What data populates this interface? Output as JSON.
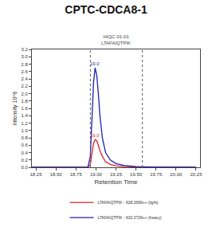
{
  "chart_data": {
    "type": "line",
    "title": "CPTC-CDCA8-1",
    "subtitle": [
      "HIQC-01-01",
      "LTAFAIQTPIK"
    ],
    "x_label": "Retention Time",
    "y_label": "Intensity 10^6",
    "x": [
      18.2,
      18.5,
      18.8,
      18.9,
      18.93,
      18.95,
      18.97,
      18.99,
      19.01,
      19.03,
      19.05,
      19.08,
      19.12,
      19.18,
      19.25,
      19.35,
      19.5,
      19.7,
      20.0,
      20.25
    ],
    "series": [
      {
        "name": "LTAFAIQTPIK - 628.3658++ (light)",
        "color": "#d62728",
        "values": [
          0,
          0,
          0,
          0,
          0.08,
          0.35,
          0.65,
          0.75,
          0.72,
          0.6,
          0.45,
          0.3,
          0.15,
          0.08,
          0.04,
          0.02,
          0.01,
          0,
          0,
          0
        ]
      },
      {
        "name": "LTAFAIQTPIK - 632.3729++ (heavy)",
        "color": "#1f1fb4",
        "values": [
          0,
          0,
          0,
          0.01,
          0.3,
          1.3,
          2.3,
          2.7,
          2.5,
          2.0,
          1.4,
          0.8,
          0.4,
          0.2,
          0.1,
          0.05,
          0.02,
          0.01,
          0,
          0
        ]
      }
    ],
    "boundaries": [
      18.93,
      19.58
    ],
    "annotations": [
      {
        "x": 18.99,
        "y": 2.7,
        "text": "19.0",
        "color": "#1f1fb4"
      },
      {
        "x": 18.99,
        "y": 0.75,
        "text": "19.0",
        "color": "#d62728"
      }
    ],
    "xlim": [
      18.2,
      20.3
    ],
    "xticks": [
      18.25,
      {
        "value": 18.5,
        "label": "18.50"
      },
      18.75,
      {
        "value": 19,
        "label": "19.00"
      },
      19.25,
      {
        "value": 19.5,
        "label": "19.50"
      },
      19.75,
      {
        "value": 20,
        "label": "20.00"
      },
      20.25
    ],
    "ylim": [
      0,
      3.2
    ],
    "yticks": [
      {
        "value": 0,
        "label": "0.0"
      },
      0.2,
      0.4,
      0.6,
      0.8,
      {
        "value": 1,
        "label": "1.0"
      },
      1.2,
      1.4,
      1.6,
      1.8,
      {
        "value": 2,
        "label": "2.0"
      },
      2.2,
      2.4,
      2.6,
      2.8,
      {
        "value": 3,
        "label": "3.0"
      },
      3.2
    ],
    "grid": false,
    "legend": "bottom"
  }
}
